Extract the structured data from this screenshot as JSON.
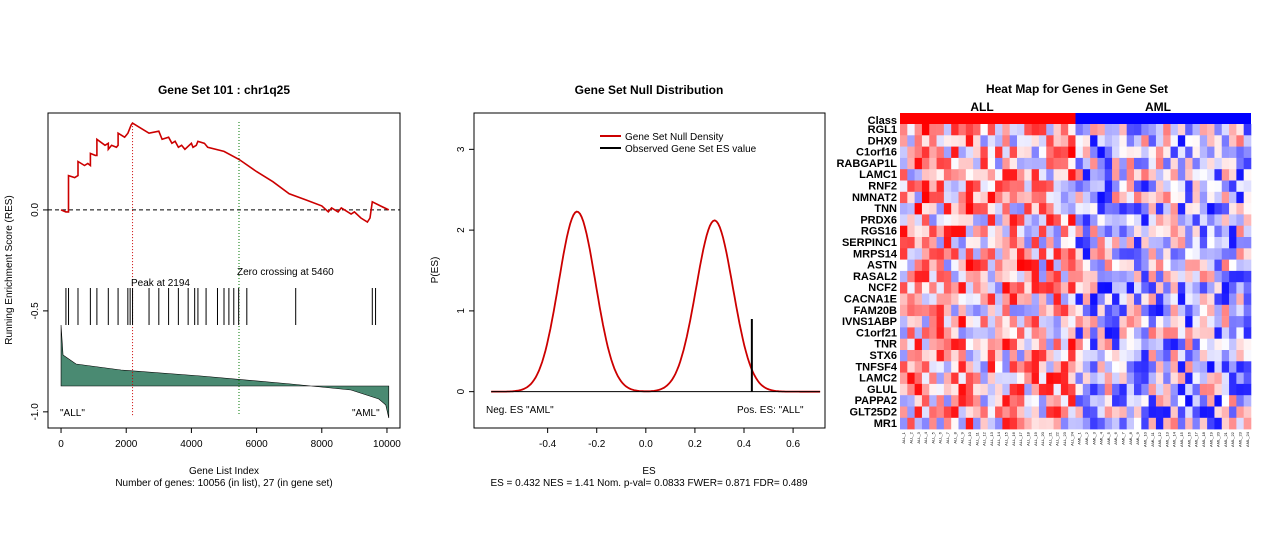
{
  "chart_data": [
    {
      "type": "line",
      "title": "Gene Set  101 : chr1q25",
      "xlabel": "Gene List Index",
      "xlabel2": "Number of genes: 10056 (in list), 27 (in gene set)",
      "ylabel": "Running Enrichment Score (RES)",
      "xlim": [
        -400,
        10400
      ],
      "ylim": [
        -1.08,
        0.48
      ],
      "x_ticks": [
        "0",
        "2000",
        "4000",
        "6000",
        "8000",
        "10000"
      ],
      "x_tick_values": [
        0,
        2000,
        4000,
        6000,
        8000,
        10000
      ],
      "y_ticks": [
        "0.0",
        "-0.5",
        "-1.0"
      ],
      "y_tick_values": [
        0.0,
        -0.5,
        -1.0
      ],
      "colors": {
        "res": "#cc0000",
        "peak_line": "#cc0000",
        "zero_line": "#007700",
        "ranked": "#4a8a72"
      },
      "res_curve": {
        "x": [
          0,
          150,
          230,
          230,
          420,
          520,
          520,
          720,
          820,
          900,
          900,
          1050,
          1100,
          1100,
          1350,
          1450,
          1450,
          1550,
          1700,
          1750,
          1750,
          1950,
          2050,
          2150,
          2194,
          2700,
          3000,
          3100,
          3300,
          3400,
          3500,
          3600,
          3700,
          3800,
          4000,
          4050,
          4150,
          4200,
          4400,
          4500,
          5000,
          5460,
          6000,
          6500,
          7000,
          7500,
          8000,
          8200,
          8300,
          8500,
          8600,
          8700,
          8900,
          9000,
          9200,
          9400,
          9480,
          9550,
          9800,
          10056
        ],
        "y": [
          0.0,
          -0.01,
          -0.01,
          0.17,
          0.16,
          0.17,
          0.24,
          0.22,
          0.23,
          0.22,
          0.28,
          0.27,
          0.27,
          0.35,
          0.32,
          0.33,
          0.3,
          0.32,
          0.31,
          0.32,
          0.38,
          0.36,
          0.38,
          0.42,
          0.43,
          0.38,
          0.39,
          0.35,
          0.36,
          0.33,
          0.34,
          0.31,
          0.32,
          0.3,
          0.33,
          0.31,
          0.32,
          0.34,
          0.33,
          0.31,
          0.29,
          0.25,
          0.19,
          0.14,
          0.08,
          0.05,
          0.02,
          -0.01,
          0.01,
          -0.01,
          0.01,
          0.0,
          -0.02,
          -0.01,
          -0.04,
          -0.06,
          -0.04,
          0.04,
          0.02,
          0.0
        ]
      },
      "hits": [
        150,
        230,
        520,
        900,
        1100,
        1450,
        1750,
        2050,
        2120,
        2194,
        2700,
        3000,
        3300,
        3600,
        3900,
        4100,
        4200,
        4450,
        4800,
        5000,
        5150,
        5300,
        5450,
        5700,
        7200,
        9550,
        9650
      ],
      "peak_x": 2194,
      "zero_crossing_x": 5460,
      "annotations": [
        "Peak at 2194",
        "Zero crossing at 5460"
      ],
      "class_labels": [
        "\"ALL\"",
        "\"AML\""
      ]
    },
    {
      "type": "line",
      "title": "Gene Set Null Distribution",
      "xlabel": "ES",
      "xlabel2": "ES = 0.432  NES = 1.41 Nom. p-val= 0.0833 FWER= 0.871 FDR= 0.489",
      "ylabel": "P(ES)",
      "xlim": [
        -0.7,
        0.73
      ],
      "ylim": [
        -0.45,
        3.45
      ],
      "x_ticks": [
        "-0.4",
        "-0.2",
        "0.0",
        "0.2",
        "0.4",
        "0.6"
      ],
      "x_tick_values": [
        -0.4,
        -0.2,
        0.0,
        0.2,
        0.4,
        0.6
      ],
      "y_ticks": [
        "0",
        "1",
        "2",
        "3"
      ],
      "y_tick_values": [
        0,
        1,
        2,
        3
      ],
      "legend": [
        "Gene Set Null Density",
        "Observed Gene Set ES value"
      ],
      "legend_position": "top-right",
      "colors": {
        "density": "#cc0000",
        "observed": "#000000"
      },
      "density": {
        "peaks": [
          {
            "mu": -0.28,
            "sigma": 0.075,
            "height": 2.23
          },
          {
            "mu": 0.28,
            "sigma": 0.075,
            "height": 2.12
          }
        ],
        "x_range": [
          -0.63,
          0.71
        ]
      },
      "observed_es": 0.432,
      "observed_density": 0.9,
      "annotations": [
        "Neg. ES \"AML\"",
        "Pos. ES: \"ALL\""
      ]
    },
    {
      "type": "heatmap",
      "title": "Heat Map for Genes in Gene Set",
      "class_row_label": "Class",
      "classes": [
        {
          "name": "ALL",
          "color": "#ff0000",
          "count": 24
        },
        {
          "name": "AML",
          "color": "#0000ff",
          "count": 24
        }
      ],
      "genes": [
        "RGL1",
        "DHX9",
        "C1orf16",
        "RABGAP1L",
        "LAMC1",
        "RNF2",
        "NMNAT2",
        "TNN",
        "PRDX6",
        "RGS16",
        "SERPINC1",
        "MRPS14",
        "ASTN",
        "RASAL2",
        "NCF2",
        "CACNA1E",
        "FAM20B",
        "IVNS1ABP",
        "C1orf21",
        "TNR",
        "STX6",
        "TNFSF4",
        "LAMC2",
        "GLUL",
        "PAPPA2",
        "GLT25D2",
        "MR1"
      ],
      "samples": [
        "ALL_1",
        "ALL_2",
        "ALL_3",
        "ALL_4",
        "ALL_5",
        "ALL_6",
        "ALL_7",
        "ALL_8",
        "ALL_9",
        "ALL_10",
        "ALL_11",
        "ALL_12",
        "ALL_13",
        "ALL_14",
        "ALL_15",
        "ALL_16",
        "ALL_17",
        "ALL_18",
        "ALL_19",
        "ALL_20",
        "ALL_21",
        "ALL_22",
        "ALL_23",
        "ALL_24",
        "AML_1",
        "AML_2",
        "AML_3",
        "AML_4",
        "AML_5",
        "AML_6",
        "AML_7",
        "AML_8",
        "AML_9",
        "AML_10",
        "AML_11",
        "AML_12",
        "AML_13",
        "AML_14",
        "AML_15",
        "AML_16",
        "AML_17",
        "AML_18",
        "AML_19",
        "AML_20",
        "AML_21",
        "AML_22",
        "AML_23",
        "AML_24"
      ],
      "color_scale": {
        "low": "#0000ff",
        "mid": "#ffffff",
        "high": "#ff0000"
      },
      "value_range": [
        -1,
        1
      ],
      "values_note": "expression values on a relative -1..1 scale"
    }
  ]
}
